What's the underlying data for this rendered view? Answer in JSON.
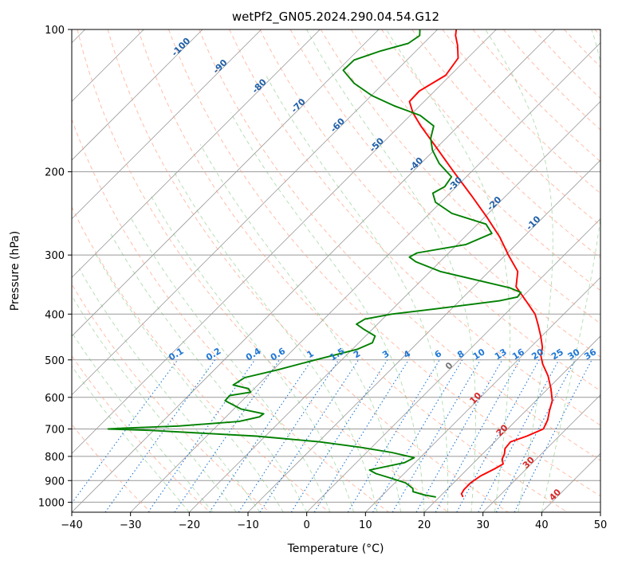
{
  "chart_data": {
    "type": "line",
    "subtype": "skew-T log-P diagram",
    "title": "wetPf2_GN05.2024.290.04.54.G12",
    "xlabel": "Temperature (°C)",
    "ylabel": "Pressure (hPa)",
    "xlim": [
      -40,
      50
    ],
    "ylim": [
      1050,
      100
    ],
    "y_scale": "log",
    "x_ticks": [
      -40,
      -30,
      -20,
      -10,
      0,
      10,
      20,
      30,
      40,
      50
    ],
    "y_ticks": [
      100,
      200,
      300,
      400,
      500,
      600,
      700,
      800,
      900,
      1000
    ],
    "grid": true,
    "colors": {
      "temperature": "#ff0000",
      "dewpoint": "#008000",
      "isotherm": "#999999",
      "dry_adiabat": "#ff9f80",
      "moist_adiabat": "#6fbf6f",
      "mixing_ratio": "#1f77d4",
      "frame": "#000000"
    },
    "series": [
      {
        "role": "temperature",
        "color": "#ff0000",
        "points": [
          {
            "p": 975,
            "t": 24.0
          },
          {
            "p": 960,
            "t": 23.2
          },
          {
            "p": 940,
            "t": 22.9
          },
          {
            "p": 910,
            "t": 22.9
          },
          {
            "p": 880,
            "t": 23.4
          },
          {
            "p": 850,
            "t": 24.6
          },
          {
            "p": 830,
            "t": 25.2
          },
          {
            "p": 810,
            "t": 24.2
          },
          {
            "p": 790,
            "t": 23.7
          },
          {
            "p": 770,
            "t": 22.9
          },
          {
            "p": 745,
            "t": 22.7
          },
          {
            "p": 725,
            "t": 24.5
          },
          {
            "p": 700,
            "t": 26.1
          },
          {
            "p": 670,
            "t": 25.3
          },
          {
            "p": 640,
            "t": 24.0
          },
          {
            "p": 610,
            "t": 22.8
          },
          {
            "p": 575,
            "t": 20.5
          },
          {
            "p": 540,
            "t": 17.8
          },
          {
            "p": 510,
            "t": 14.9
          },
          {
            "p": 490,
            "t": 13.2
          },
          {
            "p": 470,
            "t": 12.0
          },
          {
            "p": 445,
            "t": 9.8
          },
          {
            "p": 420,
            "t": 7.3
          },
          {
            "p": 400,
            "t": 5.1
          },
          {
            "p": 375,
            "t": 1.3
          },
          {
            "p": 350,
            "t": -2.8
          },
          {
            "p": 325,
            "t": -5.1
          },
          {
            "p": 300,
            "t": -9.5
          },
          {
            "p": 275,
            "t": -14.0
          },
          {
            "p": 250,
            "t": -19.5
          },
          {
            "p": 225,
            "t": -25.8
          },
          {
            "p": 200,
            "t": -33.0
          },
          {
            "p": 175,
            "t": -41.0
          },
          {
            "p": 160,
            "t": -46.4
          },
          {
            "p": 150,
            "t": -50.0
          },
          {
            "p": 142,
            "t": -52.5
          },
          {
            "p": 135,
            "t": -52.6
          },
          {
            "p": 125,
            "t": -50.8
          },
          {
            "p": 115,
            "t": -51.6
          },
          {
            "p": 108,
            "t": -53.9
          },
          {
            "p": 103,
            "t": -55.9
          },
          {
            "p": 100,
            "t": -56.8
          }
        ]
      },
      {
        "role": "dewpoint",
        "color": "#008000",
        "points": [
          {
            "p": 975,
            "t": 19.4
          },
          {
            "p": 965,
            "t": 17.0
          },
          {
            "p": 950,
            "t": 14.6
          },
          {
            "p": 935,
            "t": 14.0
          },
          {
            "p": 910,
            "t": 11.8
          },
          {
            "p": 890,
            "t": 8.6
          },
          {
            "p": 870,
            "t": 5.2
          },
          {
            "p": 855,
            "t": 3.5
          },
          {
            "p": 840,
            "t": 5.8
          },
          {
            "p": 825,
            "t": 8.2
          },
          {
            "p": 805,
            "t": 9.0
          },
          {
            "p": 785,
            "t": 4.3
          },
          {
            "p": 765,
            "t": -2.0
          },
          {
            "p": 745,
            "t": -9.9
          },
          {
            "p": 725,
            "t": -21.5
          },
          {
            "p": 705,
            "t": -40.4
          },
          {
            "p": 700,
            "t": -48.0
          },
          {
            "p": 697,
            "t": -45.4
          },
          {
            "p": 690,
            "t": -36.5
          },
          {
            "p": 675,
            "t": -27.0
          },
          {
            "p": 660,
            "t": -24.3
          },
          {
            "p": 650,
            "t": -24.1
          },
          {
            "p": 635,
            "t": -28.8
          },
          {
            "p": 610,
            "t": -32.9
          },
          {
            "p": 595,
            "t": -33.0
          },
          {
            "p": 585,
            "t": -30.0
          },
          {
            "p": 575,
            "t": -31.0
          },
          {
            "p": 565,
            "t": -34.2
          },
          {
            "p": 545,
            "t": -33.5
          },
          {
            "p": 525,
            "t": -29.3
          },
          {
            "p": 500,
            "t": -24.5
          },
          {
            "p": 475,
            "t": -19.2
          },
          {
            "p": 460,
            "t": -17.7
          },
          {
            "p": 445,
            "t": -18.4
          },
          {
            "p": 430,
            "t": -21.6
          },
          {
            "p": 420,
            "t": -23.6
          },
          {
            "p": 410,
            "t": -23.0
          },
          {
            "p": 400,
            "t": -19.3
          },
          {
            "p": 390,
            "t": -12.8
          },
          {
            "p": 375,
            "t": -3.2
          },
          {
            "p": 368,
            "t": -0.8
          },
          {
            "p": 360,
            "t": -1.0
          },
          {
            "p": 352,
            "t": -3.7
          },
          {
            "p": 340,
            "t": -10.0
          },
          {
            "p": 325,
            "t": -18.3
          },
          {
            "p": 310,
            "t": -24.1
          },
          {
            "p": 303,
            "t": -26.0
          },
          {
            "p": 297,
            "t": -25.4
          },
          {
            "p": 285,
            "t": -18.5
          },
          {
            "p": 270,
            "t": -16.0
          },
          {
            "p": 258,
            "t": -18.6
          },
          {
            "p": 245,
            "t": -26.2
          },
          {
            "p": 232,
            "t": -30.9
          },
          {
            "p": 222,
            "t": -32.9
          },
          {
            "p": 215,
            "t": -32.0
          },
          {
            "p": 205,
            "t": -32.5
          },
          {
            "p": 192,
            "t": -36.9
          },
          {
            "p": 180,
            "t": -40.3
          },
          {
            "p": 170,
            "t": -42.6
          },
          {
            "p": 160,
            "t": -44.2
          },
          {
            "p": 152,
            "t": -48.3
          },
          {
            "p": 145,
            "t": -54.4
          },
          {
            "p": 138,
            "t": -59.9
          },
          {
            "p": 130,
            "t": -65.0
          },
          {
            "p": 122,
            "t": -69.1
          },
          {
            "p": 116,
            "t": -69.0
          },
          {
            "p": 111,
            "t": -66.0
          },
          {
            "p": 107,
            "t": -62.6
          },
          {
            "p": 103,
            "t": -62.0
          },
          {
            "p": 100,
            "t": -63.0
          }
        ]
      }
    ],
    "background_lines": {
      "isotherm_labels": [
        "-100",
        "-90",
        "-80",
        "-70",
        "-60",
        "-50",
        "-40",
        "-30",
        "-20",
        "-10",
        "0",
        "10",
        "20",
        "30",
        "40"
      ],
      "isotherm_label_values": [
        -100,
        -90,
        -80,
        -70,
        -60,
        -50,
        -40,
        -30,
        -20,
        -10,
        0,
        10,
        20,
        30,
        40
      ],
      "mixing_ratio_labels": [
        "0.1",
        "0.2",
        "0.4",
        "0.6",
        "1",
        "1.5",
        "2",
        "3",
        "4",
        "6",
        "8",
        "10",
        "13",
        "16",
        "20",
        "25",
        "30",
        "36"
      ],
      "mixing_ratio_values_gkg": [
        0.1,
        0.2,
        0.4,
        0.6,
        1,
        1.5,
        2,
        3,
        4,
        6,
        8,
        10,
        13,
        16,
        20,
        25,
        30,
        36
      ],
      "mixing_ratio_label_pressure": 500
    }
  }
}
